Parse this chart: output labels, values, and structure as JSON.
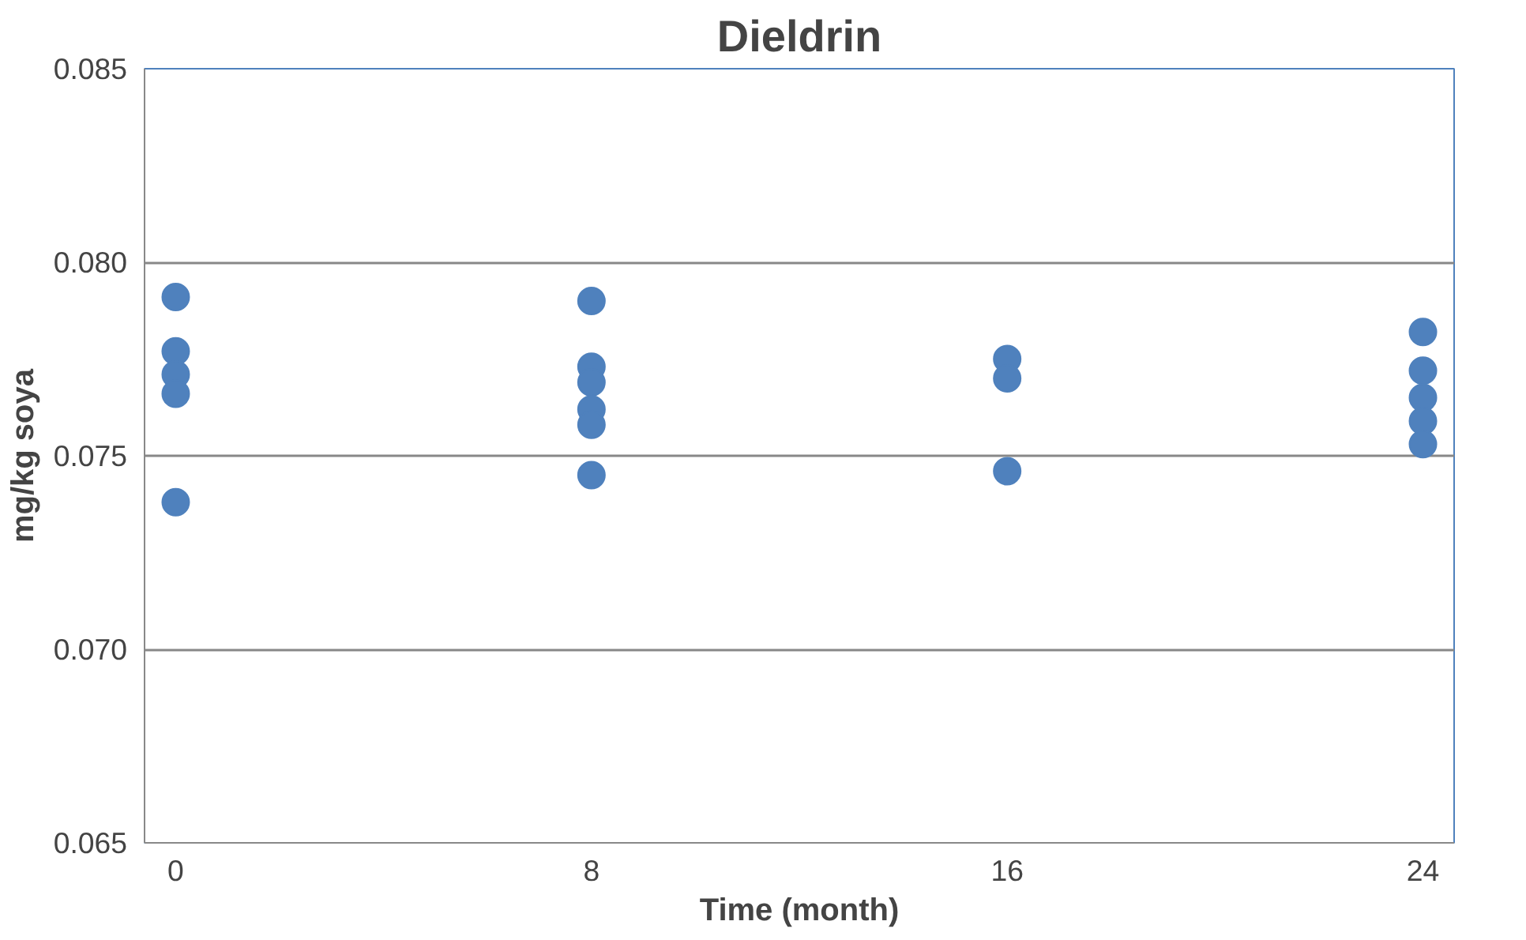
{
  "chart_data": {
    "type": "scatter",
    "title": "Dieldrin",
    "xlabel": "Time (month)",
    "ylabel": "mg/kg soya",
    "x": [
      0,
      0,
      0,
      0,
      0,
      8,
      8,
      8,
      8,
      8,
      8,
      16,
      16,
      16,
      24,
      24,
      24,
      24,
      24
    ],
    "values": [
      0.0791,
      0.0777,
      0.0771,
      0.0766,
      0.0738,
      0.079,
      0.0773,
      0.0769,
      0.0762,
      0.0758,
      0.0745,
      0.0775,
      0.077,
      0.0746,
      0.0782,
      0.0772,
      0.0765,
      0.0759,
      0.0753
    ],
    "color": "#4f81bd",
    "marker": "circle",
    "xlim": [
      -0.6,
      24.6
    ],
    "xticks": [
      0,
      8,
      16,
      24
    ],
    "ylim": [
      0.065,
      0.085
    ],
    "yticks": [
      {
        "value": 0.065,
        "label": "0.065"
      },
      {
        "value": 0.07,
        "label": "0.070"
      },
      {
        "value": 0.075,
        "label": "0.075"
      },
      {
        "value": 0.08,
        "label": "0.080"
      },
      {
        "value": 0.085,
        "label": "0.085"
      }
    ],
    "grid": "y"
  }
}
